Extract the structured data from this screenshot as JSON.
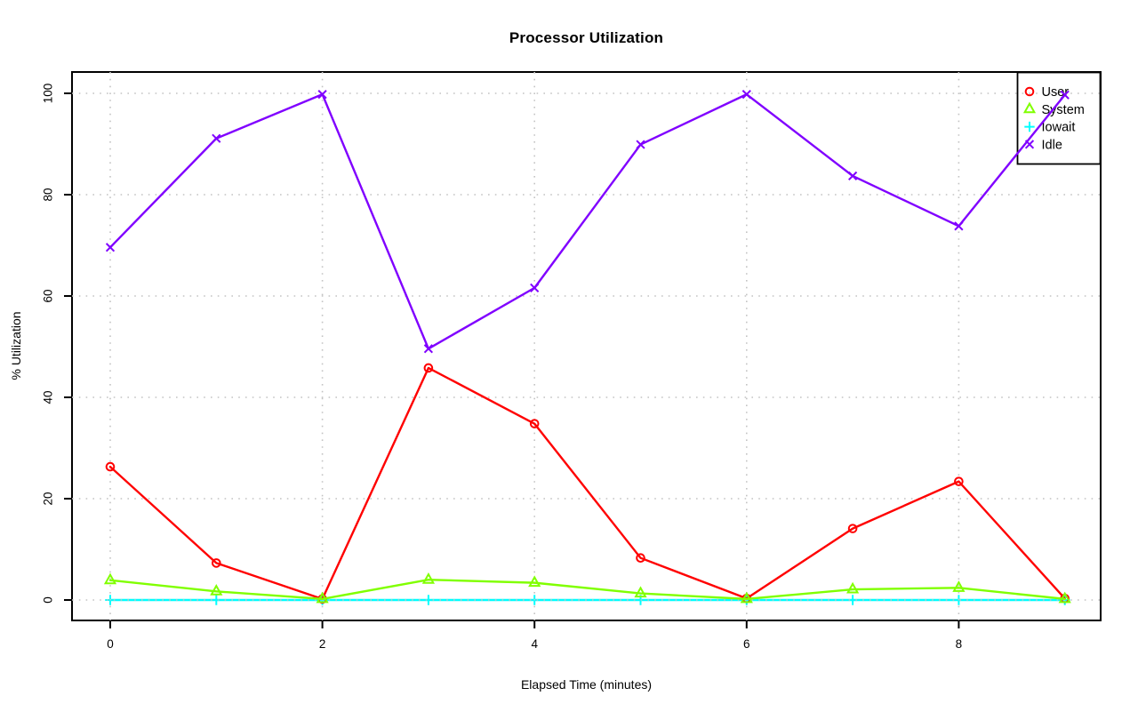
{
  "chart_data": {
    "type": "line",
    "title": "Processor Utilization",
    "xlabel": "Elapsed Time (minutes)",
    "ylabel": "% Utilization",
    "x": [
      0,
      1,
      2,
      3,
      4,
      5,
      6,
      7,
      8,
      9
    ],
    "series": [
      {
        "name": "User",
        "color": "#FF0000",
        "marker": "circle",
        "values": [
          26.3,
          7.3,
          0.2,
          45.8,
          34.8,
          8.3,
          0.3,
          14.1,
          23.4,
          0.3
        ]
      },
      {
        "name": "System",
        "color": "#80FF00",
        "marker": "triangle",
        "values": [
          3.9,
          1.7,
          0.2,
          4.0,
          3.4,
          1.3,
          0.2,
          2.1,
          2.4,
          0.2
        ]
      },
      {
        "name": "Iowait",
        "color": "#00FFFF",
        "marker": "plus",
        "values": [
          0,
          0,
          0,
          0,
          0,
          0,
          0,
          0,
          0,
          0
        ]
      },
      {
        "name": "Idle",
        "color": "#8000FF",
        "marker": "cross",
        "values": [
          69.6,
          91.1,
          99.8,
          49.6,
          61.6,
          89.9,
          99.8,
          83.7,
          73.8,
          99.7
        ]
      }
    ],
    "x_ticks": [
      0,
      2,
      4,
      6,
      8
    ],
    "y_ticks": [
      0,
      20,
      40,
      60,
      80,
      100
    ],
    "xlim": [
      0,
      9
    ],
    "ylim": [
      0,
      100
    ],
    "grid": true,
    "grid_color": "#C3C3C3",
    "axis_color": "#000000",
    "legend_position": "top-right",
    "legend_items": [
      "User",
      "System",
      "Iowait",
      "Idle"
    ]
  }
}
